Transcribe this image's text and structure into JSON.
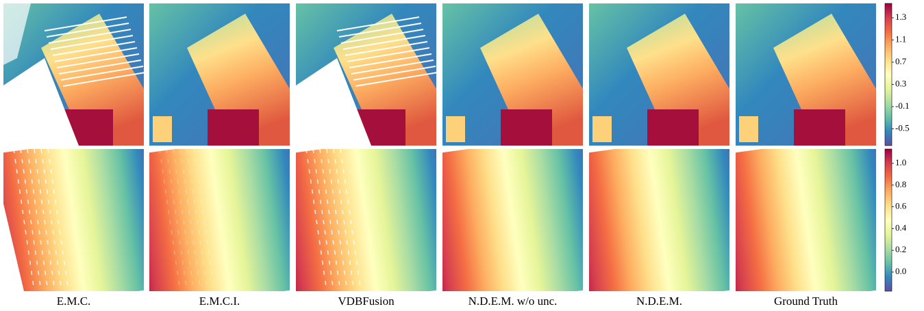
{
  "columns": [
    "E.M.C.",
    "E.M.C.I.",
    "VDBFusion",
    "N.D.E.M. w/o unc.",
    "N.D.E.M.",
    "Ground Truth"
  ],
  "colorbars": [
    {
      "ticks": [
        "1.3",
        "1.1",
        "0.7",
        "0.3",
        "-0.1",
        "-0.5"
      ]
    },
    {
      "ticks": [
        "1.0",
        "0.8",
        "0.6",
        "0.4",
        "0.2",
        "0.0"
      ]
    }
  ]
}
